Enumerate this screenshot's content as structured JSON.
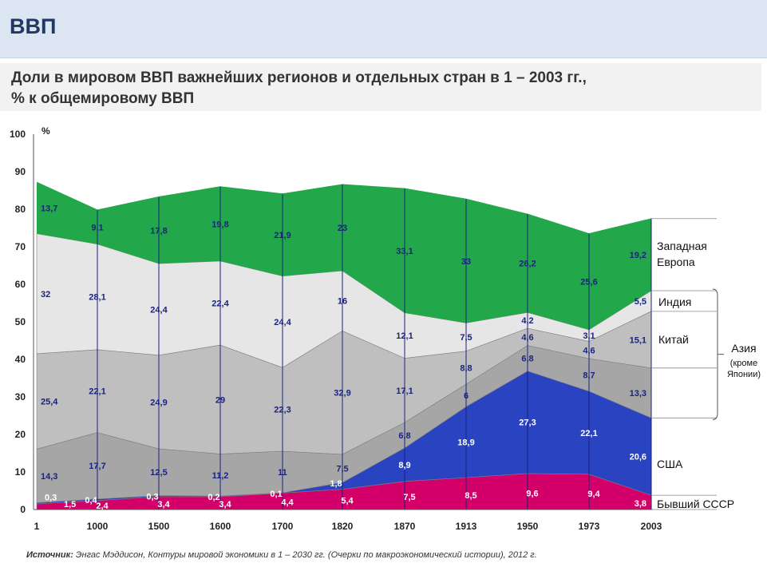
{
  "header": {
    "title": "ВВП"
  },
  "subtitle": {
    "line1": "Доли в мировом ВВП важнейших регионов и отдельных стран в 1 – 2003 гг.,",
    "line2": "% к общемировому ВВП"
  },
  "source": {
    "label": "Источник:",
    "text": "Энгас Мэддисон, Контуры мировой экономики в 1 – 2030 гг. (Очерки по макроэкономический истории), 2012 г."
  },
  "colors": {
    "ussr": "#d4006a",
    "usa": "#2a43c0",
    "japan": "#a6a6a6",
    "china": "#bfbfbf",
    "india": "#e6e6e6",
    "west_europe": "#22a84a",
    "lines": "#1a237e"
  },
  "chart_data": {
    "type": "area",
    "stacked": true,
    "unit_label": "%",
    "x": [
      "1",
      "1000",
      "1500",
      "1600",
      "1700",
      "1820",
      "1870",
      "1913",
      "1950",
      "1973",
      "2003"
    ],
    "ylim": [
      0,
      100
    ],
    "yticks": [
      0,
      10,
      20,
      30,
      40,
      50,
      60,
      70,
      80,
      90,
      100
    ],
    "series": [
      {
        "name": "Бывший СССР",
        "values": [
          1.5,
          2.4,
          3.4,
          3.4,
          4.4,
          5.4,
          7.5,
          8.5,
          9.6,
          9.4,
          3.8
        ],
        "labels": [
          "1,5",
          "2,4",
          "3,4",
          "3,4",
          "4,4",
          "5,4",
          "7,5",
          "8,5",
          "9,6",
          "9,4",
          "3,8"
        ]
      },
      {
        "name": "США",
        "values": [
          0.3,
          0.4,
          0.3,
          0.2,
          0.1,
          1.8,
          8.9,
          18.9,
          27.3,
          22.1,
          20.6
        ],
        "labels": [
          "0,3",
          "0,4",
          "0,3",
          "0,2",
          "0,1",
          "1,8",
          "8,9",
          "18,9",
          "27,3",
          "22,1",
          "20,6"
        ]
      },
      {
        "name": "",
        "values": [
          14.3,
          17.7,
          12.5,
          11.2,
          11,
          7.5,
          6.8,
          6,
          6.8,
          8.7,
          13.3
        ],
        "labels": [
          "14,3",
          "17,7",
          "12,5",
          "11,2",
          "11",
          "7,5",
          "6,8",
          "6",
          "6,8",
          "8,7",
          "13,3"
        ]
      },
      {
        "name": "Китай",
        "values": [
          25.4,
          22.1,
          24.9,
          29,
          22.3,
          32.9,
          17.1,
          8.8,
          4.6,
          4.6,
          15.1
        ],
        "labels": [
          "25,4",
          "22,1",
          "24,9",
          "29",
          "22,3",
          "32,9",
          "17,1",
          "8,8",
          "4,6",
          "4,6",
          "15,1"
        ]
      },
      {
        "name": "Индия",
        "values": [
          32,
          28.1,
          24.4,
          22.4,
          24.4,
          16,
          12.1,
          7.5,
          4.2,
          3.1,
          5.5
        ],
        "labels": [
          "32",
          "28,1",
          "24,4",
          "22,4",
          "24,4",
          "16",
          "12,1",
          "7,5",
          "4,2",
          "3,1",
          "5,5"
        ]
      },
      {
        "name": "Западная Европа",
        "values": [
          13.7,
          9.1,
          17.8,
          19.8,
          21.9,
          23,
          33.1,
          33,
          26.2,
          25.6,
          19.2
        ],
        "labels": [
          "13,7",
          "9,1",
          "17,8",
          "19,8",
          "21,9",
          "23",
          "33,1",
          "33",
          "26,2",
          "25,6",
          "19,2"
        ]
      }
    ],
    "legend": {
      "west_europe": [
        "Западная",
        "Европа"
      ],
      "india": "Индия",
      "china": "Китай",
      "asia": "Азия",
      "asia_note": [
        "(кроме",
        "Японии)"
      ],
      "usa": "США",
      "ussr": "Бывший СССР"
    }
  }
}
